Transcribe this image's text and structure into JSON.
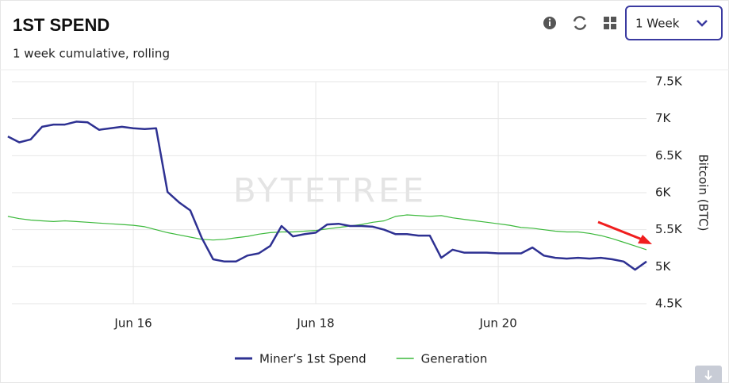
{
  "chart_data": {
    "type": "line",
    "title": "1ST SPEND",
    "subtitle": "1 week cumulative, rolling",
    "range_selector": "1 Week",
    "watermark": "BYTETREE",
    "y_label": "Bitcoin (BTC)",
    "categories": [
      null,
      null,
      null,
      null,
      null,
      null,
      null,
      null,
      null,
      null,
      null,
      "Jun 16",
      null,
      null,
      null,
      null,
      null,
      null,
      null,
      null,
      null,
      null,
      null,
      null,
      null,
      null,
      null,
      "Jun 18",
      null,
      null,
      null,
      null,
      null,
      null,
      null,
      null,
      null,
      null,
      null,
      null,
      null,
      null,
      null,
      "Jun 20",
      null,
      null,
      null,
      null,
      null,
      null,
      null,
      null,
      null,
      null,
      null,
      null,
      null
    ],
    "series": [
      {
        "name": "Miner’s 1st Spend",
        "color": "#2e3192",
        "values": [
          6760,
          6680,
          6720,
          6890,
          6920,
          6920,
          6960,
          6950,
          6850,
          6870,
          6890,
          6870,
          6860,
          6870,
          6010,
          5870,
          5760,
          5390,
          5100,
          5070,
          5070,
          5150,
          5180,
          5280,
          5550,
          5410,
          5440,
          5460,
          5570,
          5580,
          5550,
          5550,
          5540,
          5500,
          5440,
          5440,
          5420,
          5420,
          5120,
          5230,
          5190,
          5190,
          5190,
          5180,
          5180,
          5180,
          5260,
          5150,
          5120,
          5110,
          5120,
          5110,
          5120,
          5100,
          5070,
          4960,
          5070
        ]
      },
      {
        "name": "Generation",
        "color": "#3cb93c",
        "values": [
          5680,
          5650,
          5630,
          5620,
          5610,
          5620,
          5610,
          5600,
          5590,
          5580,
          5570,
          5560,
          5540,
          5500,
          5460,
          5430,
          5400,
          5370,
          5360,
          5370,
          5390,
          5410,
          5440,
          5460,
          5470,
          5470,
          5480,
          5490,
          5510,
          5530,
          5550,
          5570,
          5600,
          5620,
          5680,
          5700,
          5690,
          5680,
          5690,
          5660,
          5640,
          5620,
          5600,
          5580,
          5560,
          5530,
          5520,
          5500,
          5480,
          5470,
          5470,
          5450,
          5420,
          5380,
          5330,
          5280,
          5230
        ]
      }
    ],
    "ylim": [
      4500,
      7500
    ],
    "yticks": [
      {
        "value": 4500,
        "label": "4.5K"
      },
      {
        "value": 5000,
        "label": "5K"
      },
      {
        "value": 5500,
        "label": "5.5K"
      },
      {
        "value": 6000,
        "label": "6K"
      },
      {
        "value": 6500,
        "label": "6.5K"
      },
      {
        "value": 7000,
        "label": "7K"
      },
      {
        "value": 7500,
        "label": "7.5K"
      }
    ],
    "grid": true,
    "legend": "bottom"
  }
}
